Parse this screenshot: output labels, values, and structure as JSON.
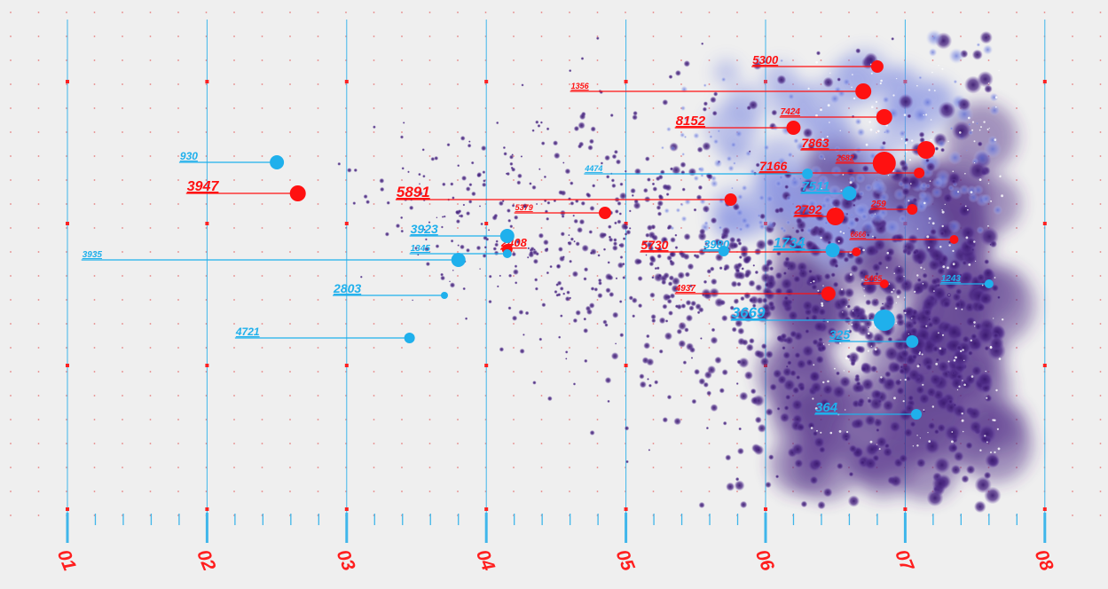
{
  "chart_data": {
    "type": "scatter",
    "x_ticks": [
      "01",
      "02",
      "03",
      "04",
      "05",
      "06",
      "07",
      "08"
    ],
    "xlim": [
      1,
      8
    ],
    "grid": true,
    "colors": {
      "background": "#efefef",
      "axis_line": "#3fb6ea",
      "tick_text": "#ff1e1e",
      "red_marker": "#ff1111",
      "blue_marker": "#1fb0ec",
      "cloud_dark": "#4d2a86",
      "cloud_light": "#7f8be3"
    },
    "series": [
      {
        "color": "red",
        "points": [
          {
            "label": "5300",
            "x": 6.8,
            "label_x": 5.9
          },
          {
            "label": "1356",
            "x": 6.7,
            "label_x": 4.6
          },
          {
            "label": "7424",
            "x": 6.85,
            "label_x": 6.1
          },
          {
            "label": "8152",
            "x": 6.2,
            "label_x": 5.35
          },
          {
            "label": "7863",
            "x": 7.15,
            "label_x": 6.25
          },
          {
            "label": "2682",
            "x": 6.85,
            "label_x": 6.5
          },
          {
            "label": "7166",
            "x": 7.1,
            "label_x": 5.95
          },
          {
            "label": "3947",
            "x": 2.65,
            "label_x": 1.85
          },
          {
            "label": "5891",
            "x": 5.75,
            "label_x": 3.35
          },
          {
            "label": "5379",
            "x": 4.85,
            "label_x": 4.2
          },
          {
            "label": "2792",
            "x": 6.5,
            "label_x": 6.2
          },
          {
            "label": "259",
            "x": 7.05,
            "label_x": 6.75
          },
          {
            "label": "6666",
            "x": 7.35,
            "label_x": 6.6
          },
          {
            "label": "2408",
            "x": 4.15,
            "label_x": 4.1
          },
          {
            "label": "5730",
            "x": 6.65,
            "label_x": 5.1
          },
          {
            "label": "4937",
            "x": 6.45,
            "label_x": 5.35
          },
          {
            "label": "5465",
            "x": 6.85,
            "label_x": 6.7
          }
        ]
      },
      {
        "color": "blue",
        "points": [
          {
            "label": "930",
            "x": 2.5,
            "label_x": 1.8
          },
          {
            "label": "4474",
            "x": 6.3,
            "label_x": 4.7
          },
          {
            "label": "7511",
            "x": 6.6,
            "label_x": 6.25
          },
          {
            "label": "3923",
            "x": 4.15,
            "label_x": 3.45
          },
          {
            "label": "1345",
            "x": 4.15,
            "label_x": 3.45
          },
          {
            "label": "3935",
            "x": 3.8,
            "label_x": 1.1
          },
          {
            "label": "3980",
            "x": 5.7,
            "label_x": 5.55
          },
          {
            "label": "1734",
            "x": 6.48,
            "label_x": 6.05
          },
          {
            "label": "2803",
            "x": 3.7,
            "label_x": 2.9
          },
          {
            "label": "1243",
            "x": 7.6,
            "label_x": 7.25
          },
          {
            "label": "3669",
            "x": 6.85,
            "label_x": 5.75
          },
          {
            "label": "4721",
            "x": 3.45,
            "label_x": 2.2
          },
          {
            "label": "325",
            "x": 7.05,
            "label_x": 6.45
          },
          {
            "label": "364",
            "x": 7.08,
            "label_x": 6.35
          }
        ]
      }
    ]
  }
}
